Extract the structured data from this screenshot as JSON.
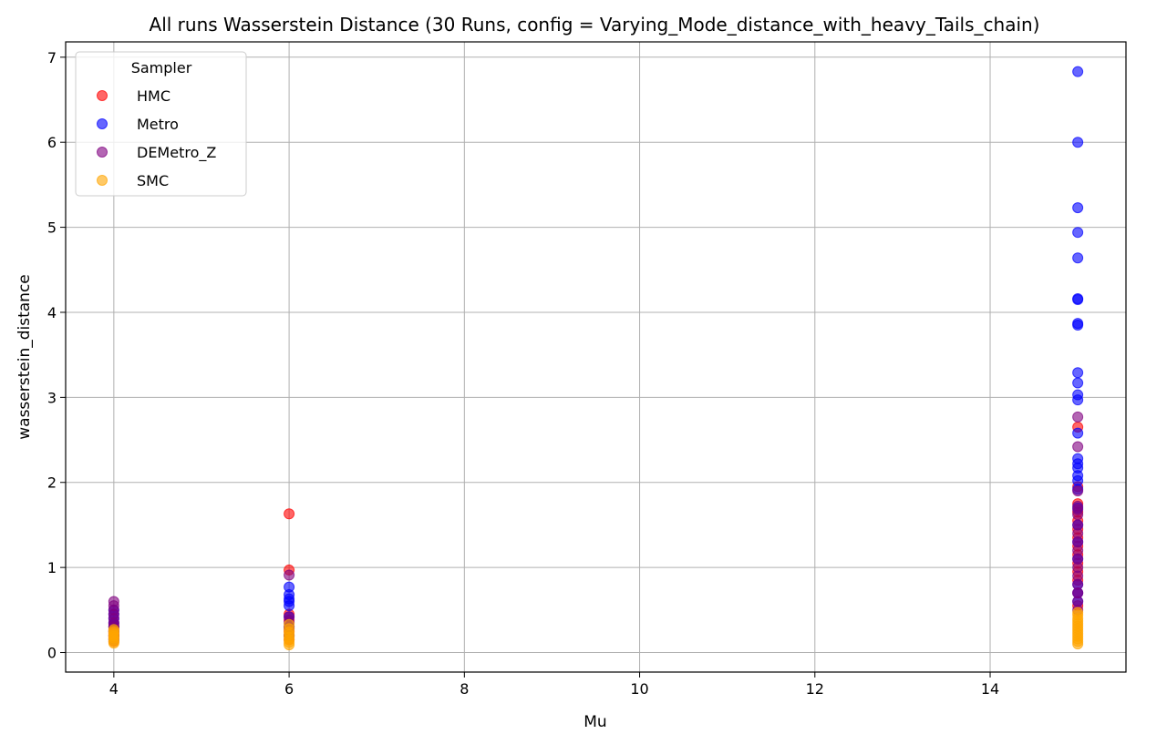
{
  "chart_data": {
    "type": "scatter",
    "title": "All runs Wasserstein Distance (30 Runs, config = Varying_Mode_distance_with_heavy_Tails_chain)",
    "xlabel": "Mu",
    "ylabel": "wasserstein_distance",
    "xlim": [
      3.45,
      15.55
    ],
    "ylim": [
      -0.23,
      7.18
    ],
    "xticks": [
      4,
      6,
      8,
      10,
      12,
      14
    ],
    "yticks": [
      0,
      1,
      2,
      3,
      4,
      5,
      6,
      7
    ],
    "grid": true,
    "legend": {
      "title": "Sampler",
      "placement": "top-left"
    },
    "series": [
      {
        "name": "HMC",
        "color": "#ff0000",
        "alpha": 0.6,
        "points": [
          [
            4,
            0.13
          ],
          [
            4,
            0.16
          ],
          [
            4,
            0.18
          ],
          [
            4,
            0.2
          ],
          [
            4,
            0.22
          ],
          [
            4,
            0.24
          ],
          [
            4,
            0.27
          ],
          [
            4,
            0.3
          ],
          [
            4,
            0.33
          ],
          [
            6,
            0.15
          ],
          [
            6,
            0.2
          ],
          [
            6,
            0.25
          ],
          [
            6,
            0.3
          ],
          [
            6,
            0.38
          ],
          [
            6,
            0.45
          ],
          [
            6,
            0.97
          ],
          [
            6,
            1.63
          ],
          [
            15,
            0.55
          ],
          [
            15,
            0.7
          ],
          [
            15,
            0.85
          ],
          [
            15,
            0.95
          ],
          [
            15,
            1.05
          ],
          [
            15,
            1.15
          ],
          [
            15,
            1.25
          ],
          [
            15,
            1.35
          ],
          [
            15,
            1.45
          ],
          [
            15,
            1.55
          ],
          [
            15,
            1.65
          ],
          [
            15,
            1.75
          ],
          [
            15,
            1.95
          ],
          [
            15,
            2.65
          ]
        ]
      },
      {
        "name": "Metro",
        "color": "#0000ff",
        "alpha": 0.6,
        "points": [
          [
            4,
            0.15
          ],
          [
            4,
            0.2
          ],
          [
            4,
            0.25
          ],
          [
            4,
            0.3
          ],
          [
            4,
            0.35
          ],
          [
            4,
            0.4
          ],
          [
            4,
            0.45
          ],
          [
            4,
            0.5
          ],
          [
            6,
            0.2
          ],
          [
            6,
            0.3
          ],
          [
            6,
            0.42
          ],
          [
            6,
            0.55
          ],
          [
            6,
            0.6
          ],
          [
            6,
            0.63
          ],
          [
            6,
            0.68
          ],
          [
            6,
            0.77
          ],
          [
            15,
            0.6
          ],
          [
            15,
            0.7
          ],
          [
            15,
            0.8
          ],
          [
            15,
            1.1
          ],
          [
            15,
            1.3
          ],
          [
            15,
            1.5
          ],
          [
            15,
            1.7
          ],
          [
            15,
            1.92
          ],
          [
            15,
            2.02
          ],
          [
            15,
            2.08
          ],
          [
            15,
            2.17
          ],
          [
            15,
            2.22
          ],
          [
            15,
            2.28
          ],
          [
            15,
            2.58
          ],
          [
            15,
            2.97
          ],
          [
            15,
            3.03
          ],
          [
            15,
            3.17
          ],
          [
            15,
            3.29
          ],
          [
            15,
            3.85
          ],
          [
            15,
            3.87
          ],
          [
            15,
            4.15
          ],
          [
            15,
            4.16
          ],
          [
            15,
            4.64
          ],
          [
            15,
            4.94
          ],
          [
            15,
            5.23
          ],
          [
            15,
            6.0
          ],
          [
            15,
            6.83
          ]
        ]
      },
      {
        "name": "DEMetro_Z",
        "color": "#800080",
        "alpha": 0.6,
        "points": [
          [
            4,
            0.2
          ],
          [
            4,
            0.25
          ],
          [
            4,
            0.3
          ],
          [
            4,
            0.35
          ],
          [
            4,
            0.4
          ],
          [
            4,
            0.45
          ],
          [
            4,
            0.5
          ],
          [
            4,
            0.55
          ],
          [
            4,
            0.6
          ],
          [
            6,
            0.2
          ],
          [
            6,
            0.28
          ],
          [
            6,
            0.35
          ],
          [
            6,
            0.42
          ],
          [
            6,
            0.91
          ],
          [
            15,
            0.5
          ],
          [
            15,
            0.6
          ],
          [
            15,
            0.7
          ],
          [
            15,
            0.8
          ],
          [
            15,
            0.9
          ],
          [
            15,
            1.0
          ],
          [
            15,
            1.1
          ],
          [
            15,
            1.2
          ],
          [
            15,
            1.3
          ],
          [
            15,
            1.4
          ],
          [
            15,
            1.5
          ],
          [
            15,
            1.62
          ],
          [
            15,
            1.68
          ],
          [
            15,
            1.72
          ],
          [
            15,
            1.9
          ],
          [
            15,
            2.42
          ],
          [
            15,
            2.77
          ]
        ]
      },
      {
        "name": "SMC",
        "color": "#ffa500",
        "alpha": 0.6,
        "points": [
          [
            4,
            0.11
          ],
          [
            4,
            0.13
          ],
          [
            4,
            0.15
          ],
          [
            4,
            0.17
          ],
          [
            4,
            0.19
          ],
          [
            4,
            0.21
          ],
          [
            4,
            0.23
          ],
          [
            4,
            0.25
          ],
          [
            4,
            0.27
          ],
          [
            6,
            0.09
          ],
          [
            6,
            0.12
          ],
          [
            6,
            0.15
          ],
          [
            6,
            0.18
          ],
          [
            6,
            0.21
          ],
          [
            6,
            0.24
          ],
          [
            6,
            0.28
          ],
          [
            6,
            0.33
          ],
          [
            15,
            0.1
          ],
          [
            15,
            0.13
          ],
          [
            15,
            0.16
          ],
          [
            15,
            0.19
          ],
          [
            15,
            0.22
          ],
          [
            15,
            0.25
          ],
          [
            15,
            0.28
          ],
          [
            15,
            0.31
          ],
          [
            15,
            0.34
          ],
          [
            15,
            0.37
          ],
          [
            15,
            0.4
          ],
          [
            15,
            0.44
          ],
          [
            15,
            0.47
          ]
        ]
      }
    ]
  }
}
